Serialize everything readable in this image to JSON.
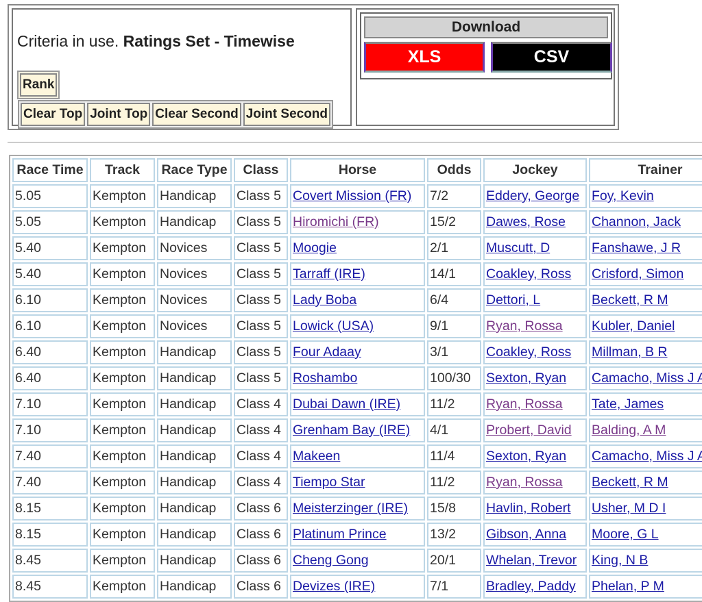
{
  "criteria": {
    "prefix": "Criteria in use.",
    "value": "Ratings Set - Timewise"
  },
  "buttons": {
    "rank": "Rank",
    "clear_top": "Clear Top",
    "joint_top": "Joint Top",
    "clear_second": "Clear Second",
    "joint_second": "Joint Second"
  },
  "download": {
    "title": "Download",
    "xls": "XLS",
    "csv": "CSV",
    "xls_color": "#ff0000",
    "csv_color": "#000000"
  },
  "table": {
    "headers": [
      "Race Time",
      "Track",
      "Race Type",
      "Class",
      "Horse",
      "Odds",
      "Jockey",
      "Trainer"
    ],
    "rows": [
      {
        "time": "5.05",
        "track": "Kempton",
        "type": "Handicap",
        "class": "Class 5",
        "horse": "Covert Mission (FR)",
        "odds": "7/2",
        "jockey": "Eddery, George",
        "trainer": "Foy, Kevin",
        "visited": []
      },
      {
        "time": "5.05",
        "track": "Kempton",
        "type": "Handicap",
        "class": "Class 5",
        "horse": "Hiromichi (FR)",
        "odds": "15/2",
        "jockey": "Dawes, Rose",
        "trainer": "Channon, Jack",
        "visited": [
          "horse"
        ]
      },
      {
        "time": "5.40",
        "track": "Kempton",
        "type": "Novices",
        "class": "Class 5",
        "horse": "Moogie",
        "odds": "2/1",
        "jockey": "Muscutt, D",
        "trainer": "Fanshawe, J R",
        "visited": []
      },
      {
        "time": "5.40",
        "track": "Kempton",
        "type": "Novices",
        "class": "Class 5",
        "horse": "Tarraff (IRE)",
        "odds": "14/1",
        "jockey": "Coakley, Ross",
        "trainer": "Crisford, Simon",
        "visited": []
      },
      {
        "time": "6.10",
        "track": "Kempton",
        "type": "Novices",
        "class": "Class 5",
        "horse": "Lady Boba",
        "odds": "6/4",
        "jockey": "Dettori, L",
        "trainer": "Beckett, R M",
        "visited": []
      },
      {
        "time": "6.10",
        "track": "Kempton",
        "type": "Novices",
        "class": "Class 5",
        "horse": "Lowick (USA)",
        "odds": "9/1",
        "jockey": "Ryan, Rossa",
        "trainer": "Kubler, Daniel",
        "visited": [
          "jockey"
        ]
      },
      {
        "time": "6.40",
        "track": "Kempton",
        "type": "Handicap",
        "class": "Class 5",
        "horse": "Four Adaay",
        "odds": "3/1",
        "jockey": "Coakley, Ross",
        "trainer": "Millman, B R",
        "visited": []
      },
      {
        "time": "6.40",
        "track": "Kempton",
        "type": "Handicap",
        "class": "Class 5",
        "horse": "Roshambo",
        "odds": "100/30",
        "jockey": "Sexton, Ryan",
        "trainer": "Camacho, Miss J A",
        "visited": []
      },
      {
        "time": "7.10",
        "track": "Kempton",
        "type": "Handicap",
        "class": "Class 4",
        "horse": "Dubai Dawn (IRE)",
        "odds": "11/2",
        "jockey": "Ryan, Rossa",
        "trainer": "Tate, James",
        "visited": [
          "jockey"
        ]
      },
      {
        "time": "7.10",
        "track": "Kempton",
        "type": "Handicap",
        "class": "Class 4",
        "horse": "Grenham Bay (IRE)",
        "odds": "4/1",
        "jockey": "Probert, David",
        "trainer": "Balding, A M",
        "visited": [
          "jockey",
          "trainer"
        ]
      },
      {
        "time": "7.40",
        "track": "Kempton",
        "type": "Handicap",
        "class": "Class 4",
        "horse": "Makeen",
        "odds": "11/4",
        "jockey": "Sexton, Ryan",
        "trainer": "Camacho, Miss J A",
        "visited": []
      },
      {
        "time": "7.40",
        "track": "Kempton",
        "type": "Handicap",
        "class": "Class 4",
        "horse": "Tiempo Star",
        "odds": "11/2",
        "jockey": "Ryan, Rossa",
        "trainer": "Beckett, R M",
        "visited": [
          "jockey"
        ]
      },
      {
        "time": "8.15",
        "track": "Kempton",
        "type": "Handicap",
        "class": "Class 6",
        "horse": "Meisterzinger (IRE)",
        "odds": "15/8",
        "jockey": "Havlin, Robert",
        "trainer": "Usher, M D I",
        "visited": []
      },
      {
        "time": "8.15",
        "track": "Kempton",
        "type": "Handicap",
        "class": "Class 6",
        "horse": "Platinum Prince",
        "odds": "13/2",
        "jockey": "Gibson, Anna",
        "trainer": "Moore, G L",
        "visited": []
      },
      {
        "time": "8.45",
        "track": "Kempton",
        "type": "Handicap",
        "class": "Class 6",
        "horse": "Cheng Gong",
        "odds": "20/1",
        "jockey": "Whelan, Trevor",
        "trainer": "King, N B",
        "visited": []
      },
      {
        "time": "8.45",
        "track": "Kempton",
        "type": "Handicap",
        "class": "Class 6",
        "horse": "Devizes (IRE)",
        "odds": "7/1",
        "jockey": "Bradley, Paddy",
        "trainer": "Phelan, P M",
        "visited": []
      }
    ]
  }
}
